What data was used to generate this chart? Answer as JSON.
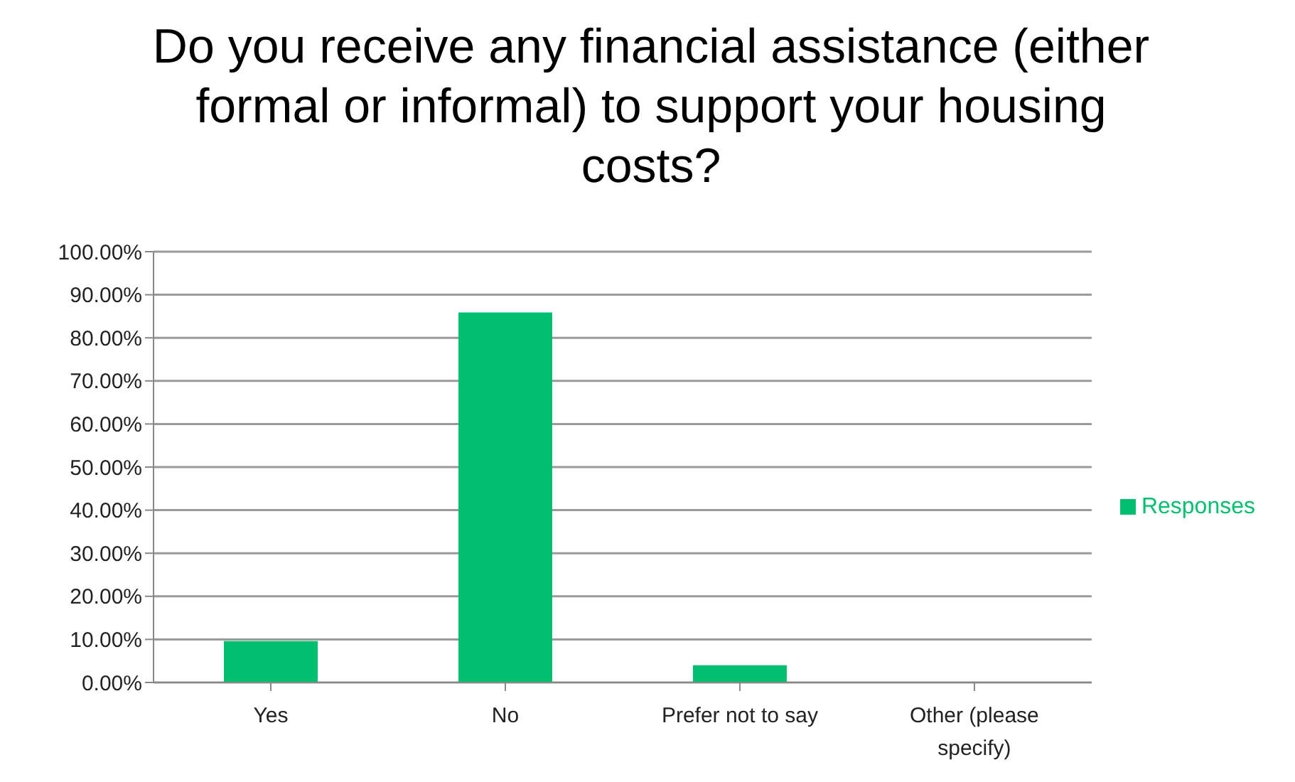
{
  "chart_data": {
    "type": "bar",
    "title": "Do you receive any financial assistance (either formal or informal) to support your housing costs?",
    "categories": [
      "Yes",
      "No",
      "Prefer not to say",
      "Other (please specify)"
    ],
    "series": [
      {
        "name": "Responses",
        "color": "#00c06f",
        "values": [
          9.6,
          85.9,
          4.0,
          0
        ]
      }
    ],
    "ylim": [
      0,
      100
    ],
    "yticks": [
      {
        "value": 0,
        "label": "0.00%"
      },
      {
        "value": 10,
        "label": "10.00%"
      },
      {
        "value": 20,
        "label": "20.00%"
      },
      {
        "value": 30,
        "label": "30.00%"
      },
      {
        "value": 40,
        "label": "40.00%"
      },
      {
        "value": 50,
        "label": "50.00%"
      },
      {
        "value": 60,
        "label": "60.00%"
      },
      {
        "value": 70,
        "label": "70.00%"
      },
      {
        "value": 80,
        "label": "80.00%"
      },
      {
        "value": 90,
        "label": "90.00%"
      },
      {
        "value": 100,
        "label": "100.00%"
      }
    ],
    "grid": "y",
    "legend": "right"
  }
}
